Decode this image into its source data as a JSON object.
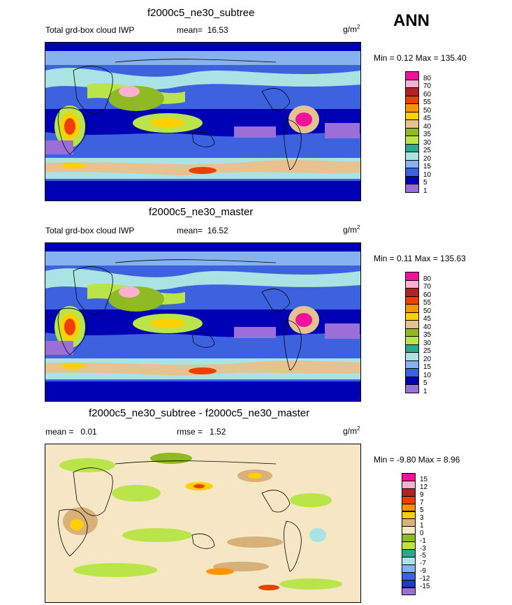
{
  "season": "ANN",
  "units_base": "g/m",
  "units_exp": "2",
  "panels": [
    {
      "title": "f2000c5_ne30_subtree",
      "variable": "Total grd-box cloud IWP",
      "stat_label": "mean=",
      "stat_value": "16.53",
      "minmax": "Min =   0.12 Max = 135.40"
    },
    {
      "title": "f2000c5_ne30_master",
      "variable": "Total grd-box cloud IWP",
      "stat_label": "mean=",
      "stat_value": "16.52",
      "minmax": "Min =   0.11 Max = 135.63"
    },
    {
      "title": "f2000c5_ne30_subtree - f2000c5_ne30_master",
      "stat_label": "mean =",
      "stat_value": "0.01",
      "rmse_label": "rmse =",
      "rmse_value": "1.52",
      "minmax": "Min =  -9.80 Max =   8.96"
    }
  ],
  "chart_data": [
    {
      "type": "heatmap",
      "title": "f2000c5_ne30_subtree",
      "subtitle": "Total grd-box cloud IWP",
      "mean": 16.53,
      "min": 0.12,
      "max": 135.4,
      "units": "g/m2",
      "colorbar_levels": [
        "80",
        "70",
        "60",
        "55",
        "50",
        "45",
        "40",
        "35",
        "30",
        "25",
        "20",
        "15",
        "10",
        "5",
        "1"
      ],
      "colorbar_colors": [
        "#f0129c",
        "#ffb0d0",
        "#b22222",
        "#ee3e00",
        "#ff9400",
        "#ffd000",
        "#e6c290",
        "#8fba24",
        "#b9e44a",
        "#2ca88f",
        "#a9e3e3",
        "#86b3f0",
        "#3c62e0",
        "#0000b5",
        "#9a6fd8"
      ]
    },
    {
      "type": "heatmap",
      "title": "f2000c5_ne30_master",
      "subtitle": "Total grd-box cloud IWP",
      "mean": 16.52,
      "min": 0.11,
      "max": 135.63,
      "units": "g/m2",
      "colorbar_levels": [
        "80",
        "70",
        "60",
        "55",
        "50",
        "45",
        "40",
        "35",
        "30",
        "25",
        "20",
        "15",
        "10",
        "5",
        "1"
      ],
      "colorbar_colors": [
        "#f0129c",
        "#ffb0d0",
        "#b22222",
        "#ee3e00",
        "#ff9400",
        "#ffd000",
        "#e6c290",
        "#8fba24",
        "#b9e44a",
        "#2ca88f",
        "#a9e3e3",
        "#86b3f0",
        "#3c62e0",
        "#0000b5",
        "#9a6fd8"
      ]
    },
    {
      "type": "heatmap",
      "title": "f2000c5_ne30_subtree - f2000c5_ne30_master",
      "mean": 0.01,
      "rmse": 1.52,
      "min": -9.8,
      "max": 8.96,
      "units": "g/m2",
      "colorbar_levels": [
        "15",
        "12",
        "9",
        "7",
        "5",
        "3",
        "1",
        "0",
        "-1",
        "-3",
        "-5",
        "-7",
        "-9",
        "-12",
        "-15"
      ],
      "colorbar_colors": [
        "#f0129c",
        "#ffb0d0",
        "#b22222",
        "#ee3e00",
        "#ff9400",
        "#ffd000",
        "#d8b07a",
        "#f5e6c4",
        "#8fba24",
        "#b9e44a",
        "#2ca88f",
        "#a9e3e3",
        "#86b3f0",
        "#3c62e0",
        "#1c3cc8",
        "#9a6fd8"
      ]
    }
  ]
}
